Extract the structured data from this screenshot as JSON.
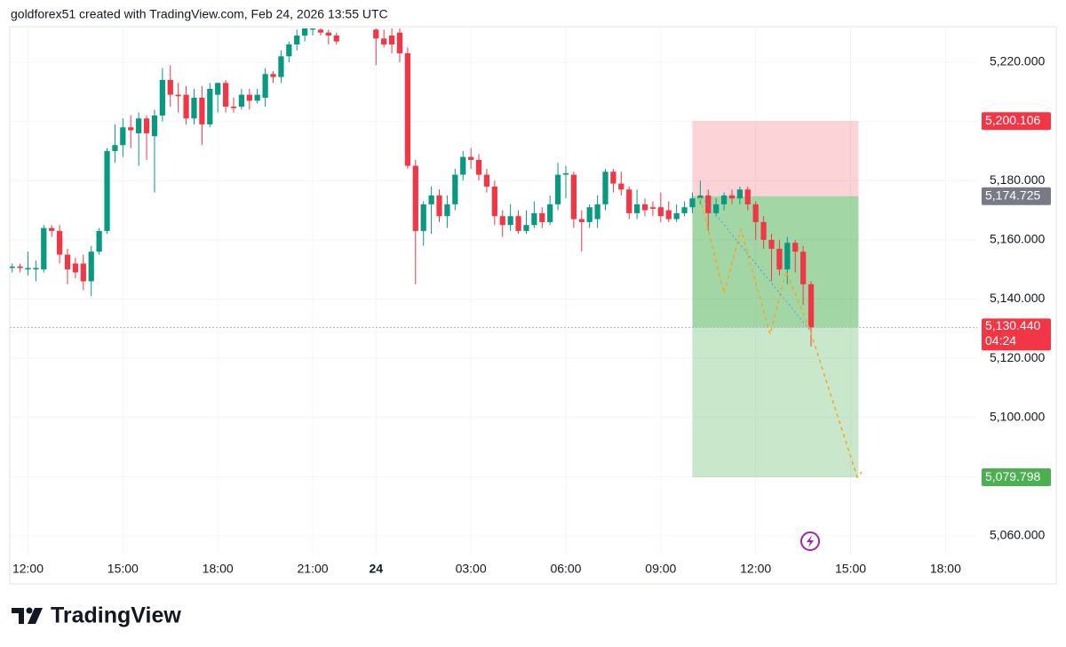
{
  "chart_data": {
    "type": "candlestick",
    "title": "goldforex51 created with TradingView.com, Feb 24, 2026 13:55 UTC",
    "brand": "TradingView",
    "up_color": "#089981",
    "down_color": "#f23645",
    "xlim": [
      -0.3,
      122
    ],
    "xticks": [
      {
        "value": 2,
        "label": "12:00"
      },
      {
        "value": 14,
        "label": "15:00"
      },
      {
        "value": 26,
        "label": "18:00"
      },
      {
        "value": 38,
        "label": "21:00"
      },
      {
        "value": 46,
        "label": "24"
      },
      {
        "value": 58,
        "label": "03:00"
      },
      {
        "value": 70,
        "label": "06:00"
      },
      {
        "value": 82,
        "label": "09:00"
      },
      {
        "value": 94,
        "label": "12:00"
      },
      {
        "value": 106,
        "label": "15:00"
      },
      {
        "value": 118,
        "label": "18:00"
      }
    ],
    "ylim": [
      5053.4,
      5231.4
    ],
    "yticks": [
      {
        "value": 5060,
        "label": "5,060.000"
      },
      {
        "value": 5080,
        "label": "5,080.000"
      },
      {
        "value": 5100,
        "label": "5,100.000"
      },
      {
        "value": 5120,
        "label": "5,120.000"
      },
      {
        "value": 5140,
        "label": "5,140.000"
      },
      {
        "value": 5160,
        "label": "5,160.000"
      },
      {
        "value": 5180,
        "label": "5,180.000"
      },
      {
        "value": 5200,
        "label": "5,200.000"
      },
      {
        "value": 5220,
        "label": "5,220.000"
      }
    ],
    "candles": {
      "x": [
        0,
        1,
        2,
        3,
        4,
        5,
        6,
        7,
        8,
        9,
        10,
        11,
        12,
        13,
        14,
        15,
        16,
        17,
        18,
        19,
        20,
        21,
        22,
        23,
        24,
        25,
        26,
        27,
        28,
        29,
        30,
        31,
        32,
        33,
        34,
        35,
        36,
        37,
        38,
        39,
        40,
        41,
        46,
        47,
        48,
        49,
        50,
        51,
        52,
        53,
        54,
        55,
        56,
        57,
        58,
        59,
        60,
        61,
        62,
        63,
        64,
        65,
        66,
        67,
        68,
        69,
        70,
        71,
        72,
        73,
        74,
        75,
        76,
        77,
        78,
        79,
        80,
        81,
        82,
        83,
        84,
        85,
        86,
        87,
        88,
        89,
        90,
        91,
        92,
        93,
        94,
        95,
        96,
        97,
        98,
        99,
        100,
        101
      ],
      "open": [
        5150.5,
        5151,
        5150,
        5150,
        5150,
        5164,
        5163,
        5155,
        5152,
        5152,
        5146,
        5156,
        5163,
        5190,
        5192,
        5198,
        5196,
        5201,
        5195,
        5202,
        5214,
        5209,
        5209,
        5201,
        5208,
        5199,
        5209,
        5213,
        5205,
        5205,
        5209,
        5207,
        5208,
        5216,
        5215,
        5222,
        5226,
        5229,
        5231,
        5231,
        5230,
        5229,
        5231,
        5228,
        5229,
        5230,
        5223,
        5185,
        5163,
        5172,
        5175,
        5168,
        5172,
        5182,
        5188,
        5187,
        5182,
        5178,
        5168,
        5165,
        5168,
        5163,
        5165,
        5169,
        5166,
        5172,
        5182,
        5182,
        5167,
        5166,
        5167,
        5172,
        5183,
        5179,
        5177,
        5169,
        5172,
        5171,
        5171,
        5170,
        5167,
        5169,
        5171,
        5174,
        5175,
        5169,
        5172,
        5175,
        5174,
        5177,
        5172,
        5166,
        5160,
        5157,
        5150,
        5159,
        5156,
        5145
      ],
      "high": [
        5152,
        5152,
        5156,
        5153,
        5165,
        5165,
        5165,
        5157,
        5154,
        5155,
        5158,
        5164,
        5191,
        5199,
        5201,
        5202,
        5203,
        5202,
        5204,
        5218,
        5219,
        5213,
        5212,
        5211,
        5212,
        5213,
        5213,
        5214,
        5208,
        5211,
        5211,
        5211,
        5218,
        5217,
        5224,
        5227,
        5231,
        5233,
        5233,
        5232,
        5231,
        5230,
        5233,
        5231,
        5232,
        5232,
        5225,
        5187,
        5173,
        5178,
        5177,
        5175,
        5184,
        5190,
        5191,
        5189,
        5184,
        5180,
        5170,
        5172,
        5170,
        5170,
        5173,
        5171,
        5175,
        5186,
        5185,
        5183,
        5170,
        5172,
        5175,
        5184,
        5184,
        5183,
        5178,
        5177,
        5174,
        5173,
        5176,
        5173,
        5172,
        5173,
        5176,
        5180,
        5177,
        5174,
        5176,
        5177,
        5178,
        5178,
        5173,
        5168,
        5162,
        5160,
        5161,
        5160,
        5158,
        5146
      ],
      "low": [
        5149,
        5149,
        5148,
        5146,
        5149,
        5161,
        5152,
        5145,
        5147,
        5143,
        5141,
        5155,
        5162,
        5186,
        5188,
        5191,
        5185,
        5187,
        5176,
        5200,
        5205,
        5203,
        5199,
        5199,
        5192,
        5198,
        5203,
        5203,
        5203,
        5204,
        5204,
        5206,
        5205,
        5213,
        5213,
        5220,
        5224,
        5227,
        5229,
        5229,
        5226,
        5226,
        5219,
        5225,
        5223,
        5220,
        5184,
        5145,
        5158,
        5162,
        5166,
        5164,
        5170,
        5180,
        5184,
        5180,
        5176,
        5165,
        5161,
        5163,
        5162,
        5162,
        5164,
        5164,
        5165,
        5170,
        5174,
        5164,
        5156,
        5164,
        5164,
        5170,
        5176,
        5175,
        5167,
        5167,
        5168,
        5168,
        5166,
        5166,
        5166,
        5168,
        5169,
        5172,
        5163,
        5168,
        5170,
        5172,
        5172,
        5170,
        5160,
        5157,
        5146,
        5148,
        5145,
        5149,
        5138,
        5124
      ],
      "close": [
        5151,
        5150.5,
        5150.5,
        5150.5,
        5164,
        5163,
        5155,
        5150,
        5149,
        5146,
        5156,
        5163,
        5190,
        5192,
        5198,
        5197,
        5201,
        5196,
        5202,
        5214,
        5209,
        5208.5,
        5201,
        5208,
        5199,
        5211,
        5213,
        5205,
        5204.5,
        5209,
        5207,
        5209,
        5216,
        5215,
        5222,
        5226,
        5229,
        5232,
        5231.5,
        5230,
        5229,
        5227,
        5228,
        5226,
        5226,
        5223,
        5185,
        5163,
        5172,
        5175,
        5168,
        5172,
        5182,
        5188,
        5187,
        5182,
        5178,
        5168,
        5165,
        5168,
        5163,
        5165,
        5169,
        5166,
        5172,
        5182,
        5182.5,
        5167,
        5166,
        5171,
        5172,
        5183,
        5179,
        5177,
        5169,
        5172,
        5170,
        5170.5,
        5168,
        5167,
        5169,
        5171,
        5174,
        5175,
        5169,
        5172,
        5175,
        5174,
        5177,
        5172,
        5166,
        5160,
        5157,
        5150,
        5159,
        5156,
        5145,
        5130.44
      ]
    },
    "position_x": [
      86,
      107
    ],
    "position": {
      "stop": {
        "value": 5200.106,
        "label": "5,200.106"
      },
      "entry": {
        "value": 5174.725,
        "label": "5,174.725"
      },
      "target": {
        "value": 5079.798,
        "label": "5,079.798"
      }
    },
    "last_price": {
      "value": 5130.44,
      "label": "5,130.440"
    },
    "countdown": "04:24"
  }
}
